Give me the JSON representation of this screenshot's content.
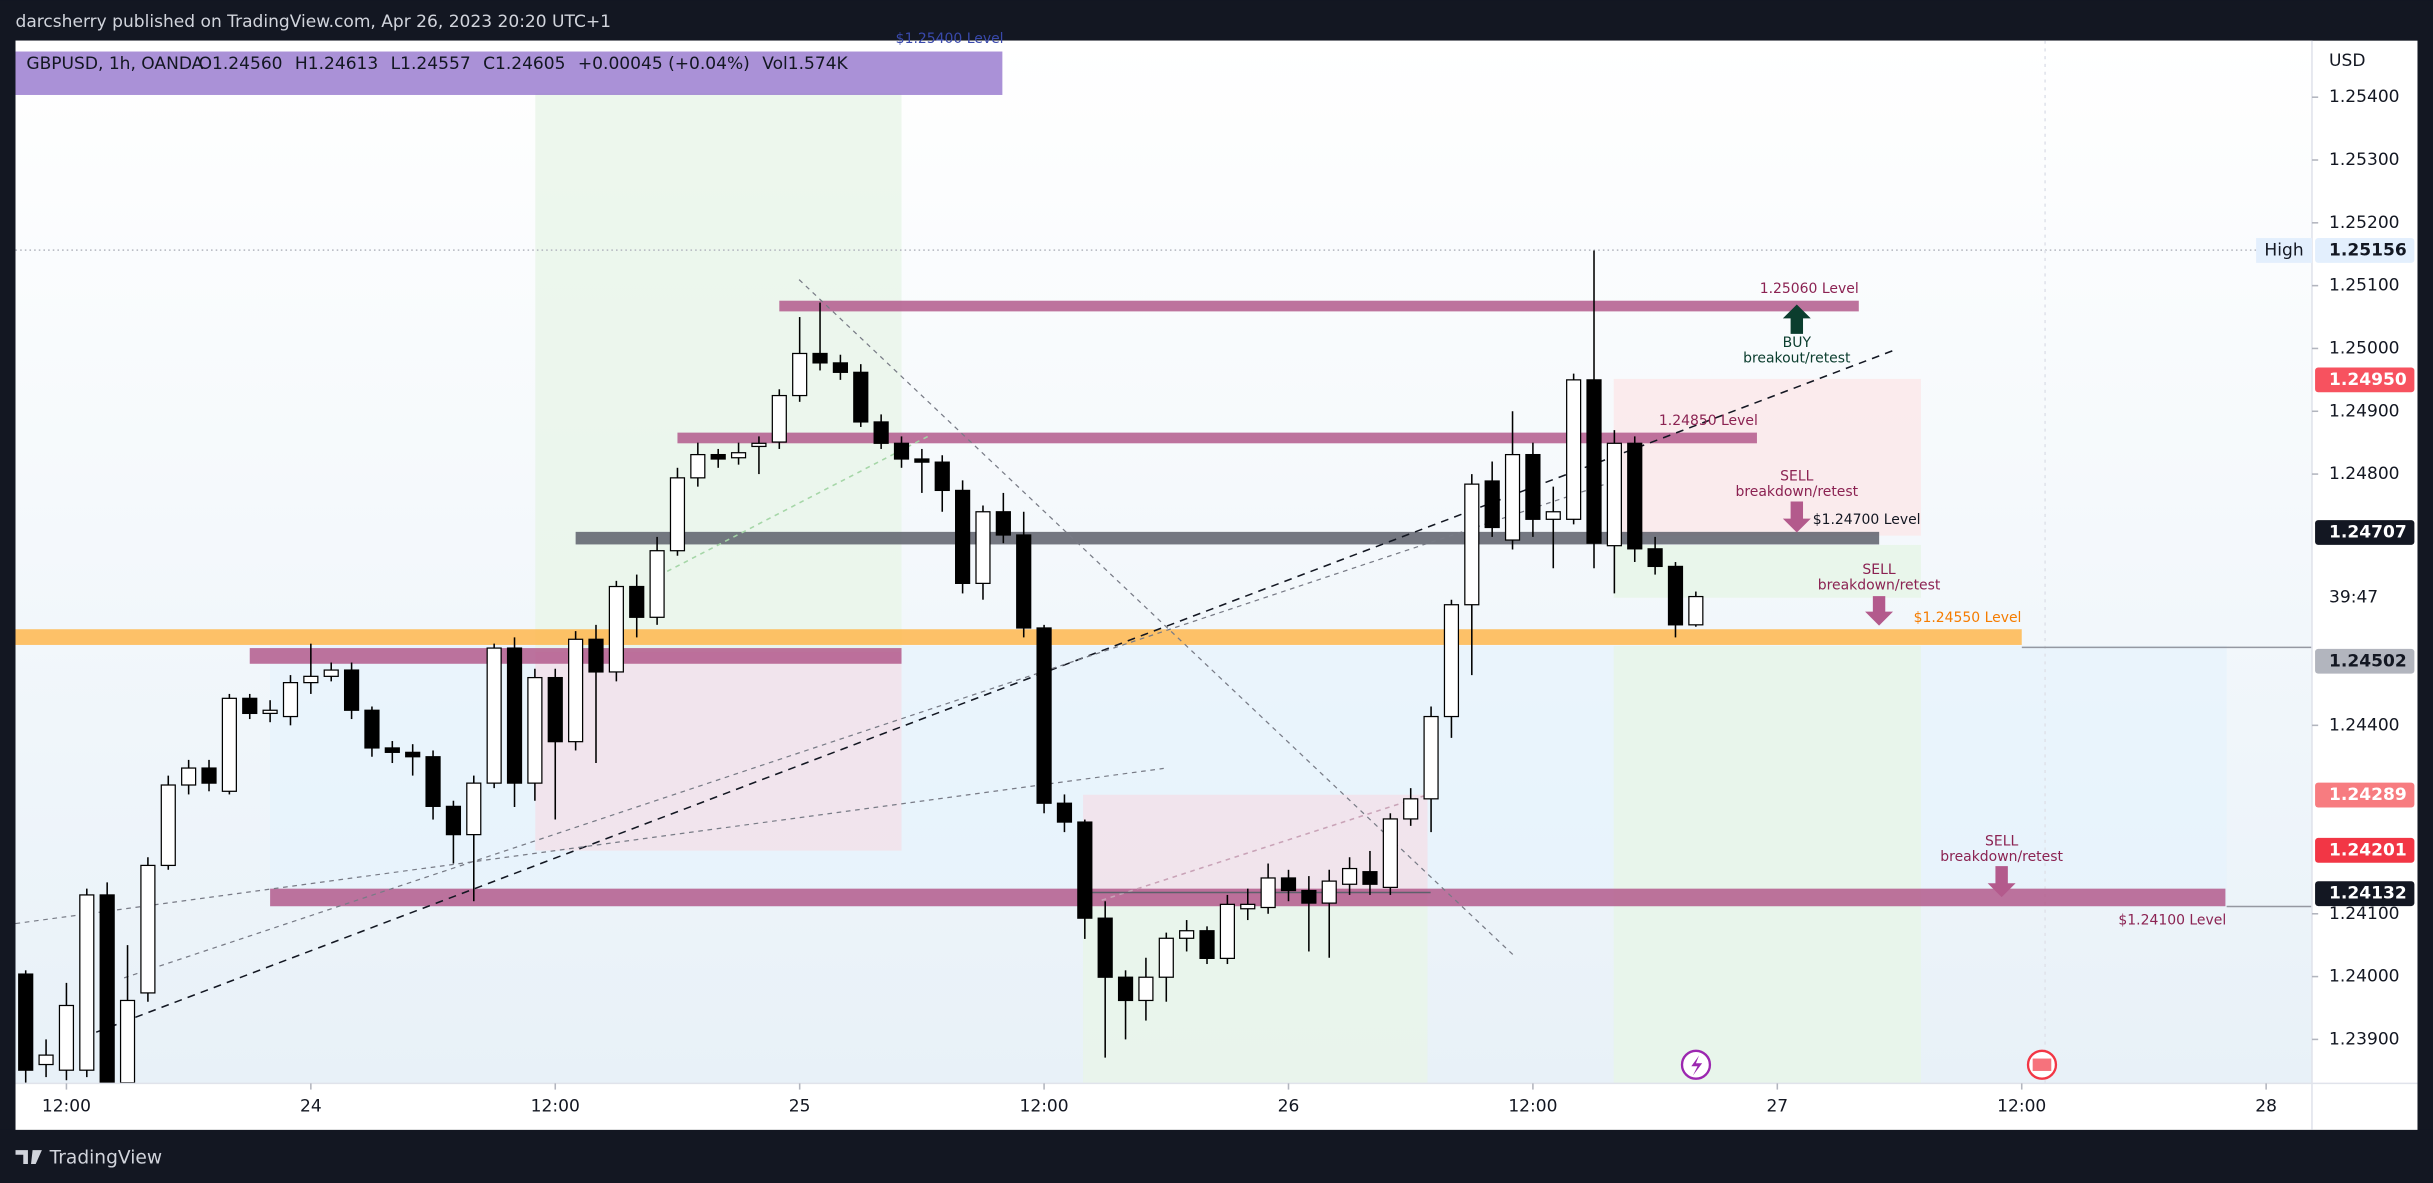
{
  "header": {
    "publisher": "darcsherry published on TradingView.com, Apr 26, 2023 20:20 UTC+1",
    "brand": "TradingView"
  },
  "chart_data": {
    "type": "candlestick",
    "legend": {
      "symbol": "GBPUSD, 1h, OANDA",
      "items": [
        "O1.24560",
        "H1.24613",
        "L1.24557",
        "C1.24605",
        "+0.00045 (+0.04%)",
        "Vol1.574K"
      ]
    },
    "currency": "USD",
    "countdown": "39:47",
    "x": [
      10,
      11,
      12,
      13,
      14,
      15,
      16,
      17,
      18,
      19,
      20,
      21,
      22,
      23,
      24,
      25,
      26,
      27,
      28,
      29,
      30,
      31,
      32,
      33,
      34,
      35,
      36,
      37,
      38,
      39,
      40,
      41,
      42,
      43,
      44,
      45,
      46,
      47,
      48,
      49,
      50,
      51,
      52,
      53,
      54,
      55,
      56,
      57,
      58,
      59,
      60,
      61,
      62,
      63,
      64,
      65,
      66,
      67,
      68,
      69,
      70,
      71,
      72,
      73,
      74,
      75,
      76,
      77,
      78,
      79,
      80,
      81,
      82,
      83,
      84,
      85,
      86,
      87,
      88,
      89,
      90,
      91,
      92
    ],
    "ohlc": [
      [
        1.24004,
        1.2401,
        1.23831,
        1.23851
      ],
      [
        1.2386,
        1.239,
        1.2384,
        1.23875
      ],
      [
        1.23851,
        1.2399,
        1.23835,
        1.23954
      ],
      [
        1.23851,
        1.2414,
        1.2384,
        1.2413
      ],
      [
        1.2413,
        1.2415,
        1.23831,
        1.23831
      ],
      [
        1.23831,
        1.2405,
        1.23831,
        1.23962
      ],
      [
        1.23974,
        1.2419,
        1.2396,
        1.24177
      ],
      [
        1.24177,
        1.2432,
        1.2417,
        1.24305
      ],
      [
        1.24305,
        1.24345,
        1.2429,
        1.24332
      ],
      [
        1.24332,
        1.24345,
        1.24295,
        1.24308
      ],
      [
        1.24295,
        1.2445,
        1.2429,
        1.24443
      ],
      [
        1.24443,
        1.2445,
        1.2441,
        1.24419
      ],
      [
        1.24419,
        1.2444,
        1.24405,
        1.24424
      ],
      [
        1.24414,
        1.2448,
        1.244,
        1.24468
      ],
      [
        1.24468,
        1.2453,
        1.2445,
        1.24478
      ],
      [
        1.24478,
        1.245,
        1.2447,
        1.24488
      ],
      [
        1.24488,
        1.245,
        1.2441,
        1.24424
      ],
      [
        1.24424,
        1.2443,
        1.2435,
        1.24364
      ],
      [
        1.24364,
        1.24375,
        1.2434,
        1.24357
      ],
      [
        1.24357,
        1.2437,
        1.2432,
        1.2435
      ],
      [
        1.2435,
        1.2436,
        1.2425,
        1.24271
      ],
      [
        1.24271,
        1.2428,
        1.2418,
        1.24226
      ],
      [
        1.24226,
        1.2432,
        1.2412,
        1.24308
      ],
      [
        1.24308,
        1.2453,
        1.243,
        1.24523
      ],
      [
        1.24523,
        1.2454,
        1.2427,
        1.24308
      ],
      [
        1.24308,
        1.2449,
        1.2428,
        1.24476
      ],
      [
        1.24476,
        1.2449,
        1.2425,
        1.24374
      ],
      [
        1.24374,
        1.2455,
        1.2436,
        1.24537
      ],
      [
        1.24537,
        1.2456,
        1.2434,
        1.24485
      ],
      [
        1.24485,
        1.2463,
        1.2447,
        1.24621
      ],
      [
        1.24621,
        1.2464,
        1.2454,
        1.24572
      ],
      [
        1.24572,
        1.247,
        1.2456,
        1.24678
      ],
      [
        1.24678,
        1.2481,
        1.2467,
        1.24794
      ],
      [
        1.24794,
        1.2485,
        1.2478,
        1.24831
      ],
      [
        1.24831,
        1.2484,
        1.2481,
        1.24824
      ],
      [
        1.24826,
        1.2485,
        1.24815,
        1.24834
      ],
      [
        1.24844,
        1.2486,
        1.248,
        1.24849
      ],
      [
        1.24851,
        1.24935,
        1.2484,
        1.24925
      ],
      [
        1.24925,
        1.2505,
        1.24915,
        1.24992
      ],
      [
        1.24992,
        1.25073,
        1.24965,
        1.24977
      ],
      [
        1.24977,
        1.2499,
        1.2495,
        1.24962
      ],
      [
        1.24962,
        1.24975,
        1.24875,
        1.24883
      ],
      [
        1.24883,
        1.24895,
        1.2484,
        1.24849
      ],
      [
        1.24849,
        1.2486,
        1.2481,
        1.24824
      ],
      [
        1.24824,
        1.2484,
        1.2477,
        1.24819
      ],
      [
        1.24819,
        1.2483,
        1.2474,
        1.24774
      ],
      [
        1.24774,
        1.2479,
        1.2461,
        1.24626
      ],
      [
        1.24626,
        1.2475,
        1.246,
        1.2474
      ],
      [
        1.2474,
        1.2477,
        1.2469,
        1.24703
      ],
      [
        1.24703,
        1.2474,
        1.2454,
        1.24555
      ],
      [
        1.24555,
        1.2456,
        1.2426,
        1.24276
      ],
      [
        1.24276,
        1.2429,
        1.2423,
        1.24246
      ],
      [
        1.24246,
        1.2425,
        1.2406,
        1.24093
      ],
      [
        1.24093,
        1.2412,
        1.23871,
        1.23999
      ],
      [
        1.23999,
        1.2401,
        1.239,
        1.23962
      ],
      [
        1.23962,
        1.2403,
        1.2393,
        1.23999
      ],
      [
        1.23999,
        1.2407,
        1.2396,
        1.24061
      ],
      [
        1.24061,
        1.2409,
        1.2404,
        1.24073
      ],
      [
        1.24073,
        1.2408,
        1.2402,
        1.24029
      ],
      [
        1.24029,
        1.2413,
        1.2402,
        1.24115
      ],
      [
        1.24108,
        1.2414,
        1.2409,
        1.24115
      ],
      [
        1.2411,
        1.2418,
        1.241,
        1.24157
      ],
      [
        1.24157,
        1.2417,
        1.2412,
        1.24137
      ],
      [
        1.24137,
        1.2416,
        1.2404,
        1.24117
      ],
      [
        1.24117,
        1.2417,
        1.2403,
        1.24152
      ],
      [
        1.24147,
        1.2419,
        1.2413,
        1.24172
      ],
      [
        1.24167,
        1.242,
        1.2413,
        1.24147
      ],
      [
        1.24142,
        1.2426,
        1.2413,
        1.24251
      ],
      [
        1.24251,
        1.243,
        1.2424,
        1.24283
      ],
      [
        1.24283,
        1.2443,
        1.2423,
        1.24414
      ],
      [
        1.24414,
        1.246,
        1.2438,
        1.24592
      ],
      [
        1.24592,
        1.248,
        1.2448,
        1.24784
      ],
      [
        1.24789,
        1.2482,
        1.247,
        1.24715
      ],
      [
        1.24695,
        1.249,
        1.2468,
        1.24831
      ],
      [
        1.24831,
        1.2485,
        1.247,
        1.24728
      ],
      [
        1.24728,
        1.2478,
        1.2465,
        1.2474
      ],
      [
        1.24728,
        1.2496,
        1.2472,
        1.2495
      ],
      [
        1.2495,
        1.25156,
        1.2465,
        1.2469
      ],
      [
        1.24686,
        1.2487,
        1.2461,
        1.24849
      ],
      [
        1.24849,
        1.2486,
        1.2466,
        1.24681
      ],
      [
        1.24681,
        1.247,
        1.2464,
        1.24653
      ],
      [
        1.24653,
        1.2466,
        1.2454,
        1.2456
      ],
      [
        1.2456,
        1.24613,
        1.24557,
        1.24605
      ]
    ],
    "up_color": "#ffffff",
    "down_color": "#000000",
    "xlim": [
      9.5,
      122.25
    ],
    "xticks": [
      {
        "value": 12,
        "label": "12:00"
      },
      24,
      {
        "value": 36,
        "label": "12:00"
      },
      {
        "value": 48,
        "label": "25"
      },
      {
        "value": 60,
        "label": "12:00"
      },
      {
        "value": 72,
        "label": "26"
      },
      {
        "value": 84,
        "label": "12:00"
      },
      {
        "value": 96,
        "label": "27"
      },
      {
        "value": 108,
        "label": "12:00"
      },
      {
        "value": 120,
        "label": "28"
      }
    ],
    "ylim": [
      1.2383,
      1.2549
    ],
    "yticks": [
      {
        "value": 1.254,
        "label": "1.25400"
      },
      {
        "value": 1.253,
        "label": "1.25300"
      },
      {
        "value": 1.252,
        "label": "1.25200"
      },
      {
        "value": 1.251,
        "label": "1.25100"
      },
      {
        "value": 1.25,
        "label": "1.25000"
      },
      {
        "value": 1.249,
        "label": "1.24900"
      },
      {
        "value": 1.248,
        "label": "1.24800"
      },
      {
        "value": 1.244,
        "label": "1.24400"
      },
      {
        "value": 1.241,
        "label": "1.24100"
      },
      {
        "value": 1.24,
        "label": "1.24000"
      },
      {
        "value": 1.239,
        "label": "1.23900"
      }
    ],
    "zones": [
      {
        "label": "1.25060 Level",
        "from": 47,
        "to": 100,
        "top": 1.25076,
        "bottom": 1.25059,
        "color": "#b35a8c"
      },
      {
        "label": "1.24850 Level",
        "from": 42,
        "to": 95,
        "top": 1.24866,
        "bottom": 1.24849,
        "color": "#b35a8c"
      },
      {
        "label": "$1.24700 Level",
        "from": 37,
        "to": 101,
        "top": 1.24708,
        "bottom": 1.24688,
        "color": "#5d606b"
      },
      {
        "label": "$1.24550 Level",
        "from": 9.5,
        "to": 108,
        "top": 1.24553,
        "bottom": 1.24528,
        "color": "#ffb74d"
      },
      {
        "from": 21,
        "to": 53,
        "top": 1.24523,
        "bottom": 1.24498,
        "color": "#b35a8c"
      },
      {
        "label": "$1.24100 Level",
        "from": 22,
        "to": 118,
        "top": 1.2414,
        "bottom": 1.24112,
        "color": "#b35a8c"
      }
    ],
    "top_level_label": "$1.25400 Level",
    "annotations": [
      {
        "title": "BUY",
        "text": "breakout/retest"
      },
      {
        "title": "SELL",
        "text": "breakdown/retest"
      },
      {
        "title": "SELL",
        "text": "breakdown/retest"
      },
      {
        "title": "SELL",
        "text": "breakdown/retest"
      }
    ],
    "high_label": "High",
    "price_labels": [
      {
        "value": 1.25156,
        "label": "1.25156",
        "color": "#e3effd",
        "text_color": "#131722"
      },
      {
        "value": 1.2495,
        "label": "1.24950",
        "color": "#f7525f",
        "text_color": "#ffffff"
      },
      {
        "value": 1.24707,
        "label": "1.24707",
        "color": "#131722",
        "text_color": "#ffffff"
      },
      {
        "value": 1.24502,
        "label": "1.24502",
        "color": "#b2b5be",
        "text_color": "#131722"
      },
      {
        "value": 1.24289,
        "label": "1.24289",
        "color": "#f77c80",
        "text_color": "#ffffff"
      },
      {
        "value": 1.24201,
        "label": "1.24201",
        "color": "#f23645",
        "text_color": "#ffffff"
      },
      {
        "value": 1.24132,
        "label": "1.24132",
        "color": "#131722",
        "text_color": "#ffffff"
      }
    ]
  }
}
